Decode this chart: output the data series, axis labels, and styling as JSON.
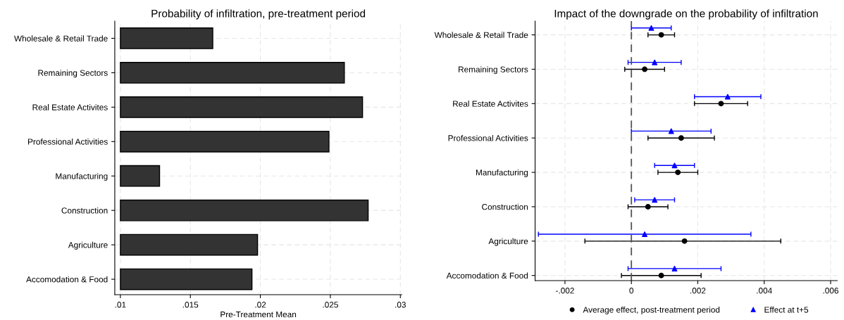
{
  "chart_data": [
    {
      "type": "bar",
      "orientation": "horizontal",
      "title": "Probability of infiltration, pre-treatment period",
      "xlabel": "Pre-Treatment Mean",
      "categories": [
        "Wholesale & Retail Trade",
        "Remaining Sectors",
        "Real Estate Activites",
        "Professional Activities",
        "Manufacturing",
        "Construction",
        "Agriculture",
        "Accomodation & Food"
      ],
      "base": [
        0.01,
        0.01,
        0.01,
        0.01,
        0.01,
        0.01,
        0.01,
        0.01
      ],
      "values": [
        0.0066,
        0.016,
        0.0173,
        0.0149,
        0.0028,
        0.0177,
        0.0098,
        0.0094
      ],
      "color": "#333333",
      "xlim": [
        0.0096,
        0.0301
      ],
      "xticks": [
        {
          "value": 0.01,
          "label": ".01"
        },
        {
          "value": 0.015,
          "label": ".015"
        },
        {
          "value": 0.02,
          "label": ".02"
        },
        {
          "value": 0.025,
          "label": ".025"
        },
        {
          "value": 0.03,
          "label": ".03"
        }
      ],
      "grid": true
    },
    {
      "type": "scatter",
      "orientation": "horizontal",
      "title": "Impact of the downgrade on the probability of infiltration",
      "categories": [
        "Wholesale & Retail Trade",
        "Remaining Sectors",
        "Real Estate Activites",
        "Professional Activities",
        "Manufacturing",
        "Construction",
        "Agriculture",
        "Accomodation & Food"
      ],
      "series": [
        {
          "name": "Average effect, post-treatment period",
          "color": "#000000",
          "marker": "circle",
          "values": [
            0.0009,
            0.0004,
            0.0027,
            0.0015,
            0.0014,
            0.0005,
            0.0016,
            0.0009
          ],
          "errors": [
            [
              0.0005,
              0.0013
            ],
            [
              -0.0002,
              0.001
            ],
            [
              0.0019,
              0.0035
            ],
            [
              0.0005,
              0.0025
            ],
            [
              0.0008,
              0.002
            ],
            [
              -0.0001,
              0.0011
            ],
            [
              -0.0014,
              0.0045
            ],
            [
              -0.0003,
              0.0021
            ]
          ]
        },
        {
          "name": "Effect at t+5",
          "color": "#0000ff",
          "marker": "triangle",
          "values": [
            0.0006,
            0.0007,
            0.0029,
            0.0012,
            0.0013,
            0.0007,
            0.0004,
            0.0013
          ],
          "errors": [
            [
              0.0,
              0.0012
            ],
            [
              -0.0001,
              0.0015
            ],
            [
              0.0019,
              0.0039
            ],
            [
              0.0,
              0.0024
            ],
            [
              0.0007,
              0.0019
            ],
            [
              0.0001,
              0.0013
            ],
            [
              -0.0028,
              0.0036
            ],
            [
              -0.0001,
              0.0027
            ]
          ]
        }
      ],
      "xlim": [
        -0.0029,
        0.0062
      ],
      "xticks": [
        {
          "value": -0.002,
          "label": "-.002"
        },
        0,
        {
          "value": 0.002,
          "label": ".002"
        },
        {
          "value": 0.004,
          "label": ".004"
        },
        {
          "value": 0.006,
          "label": ".006"
        }
      ],
      "ref_lines": [
        {
          "axis": "x",
          "value": 0,
          "color": "#555555",
          "line_style": "dashed"
        }
      ],
      "grid": true,
      "legend": "bottom"
    }
  ]
}
